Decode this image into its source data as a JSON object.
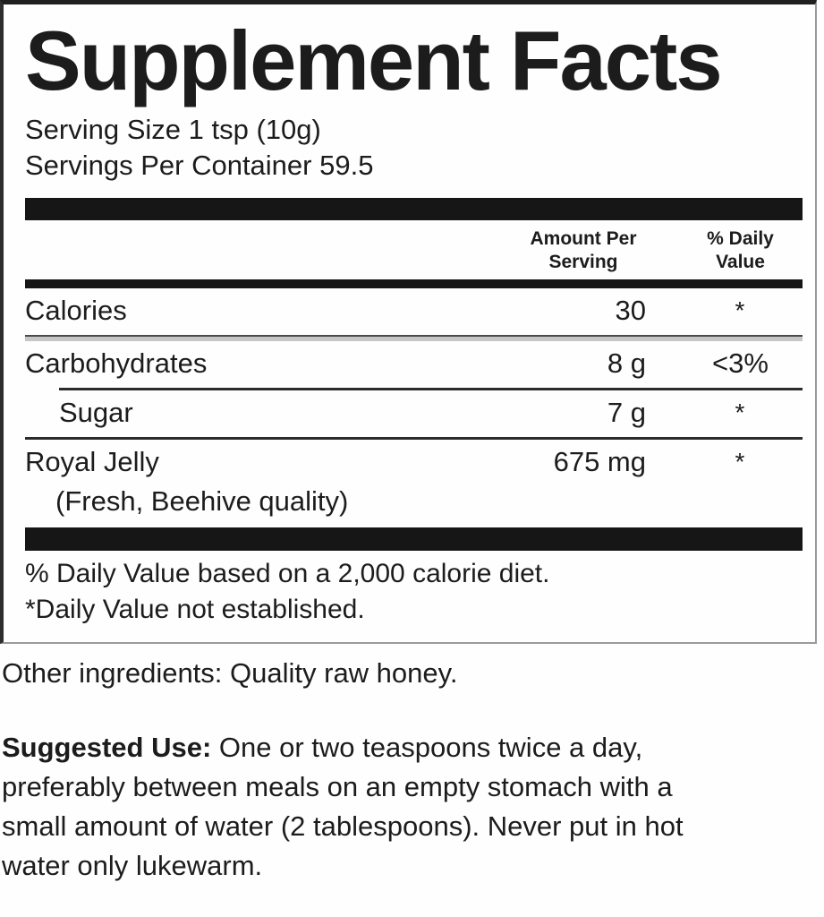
{
  "colors": {
    "ink": "#1c1c1c",
    "rule_dark": "#161616",
    "rule_light": "#c6c6c6"
  },
  "label": {
    "title": "Supplement Facts",
    "serving_size": "Serving Size 1 tsp (10g)",
    "servings_per_container": "Servings Per Container 59.5",
    "columns": {
      "amount_header": "Amount Per Serving",
      "dv_header": "% Daily Value"
    },
    "rows": [
      {
        "name": "Calories",
        "amount": "30",
        "dv": "*"
      },
      {
        "name": "Carbohydrates",
        "amount": "8 g",
        "dv": "<3%"
      },
      {
        "name": "Sugar",
        "amount": "7 g",
        "dv": "*"
      },
      {
        "name": "Royal Jelly",
        "sub": "(Fresh, Beehive quality)",
        "amount": "675 mg",
        "dv": "*"
      }
    ],
    "footnotes": [
      "% Daily Value based on a 2,000 calorie diet.",
      "*Daily Value not established."
    ]
  },
  "other_ingredients": "Other ingredients: Quality raw honey.",
  "suggested_use": {
    "lead": "Suggested Use:",
    "line1_rest": " One or two teaspoons twice a day,",
    "lines": [
      "preferably between meals on an empty stomach with a",
      "small amount of water (2 tablespoons). Never put in hot",
      "water only lukewarm."
    ]
  }
}
